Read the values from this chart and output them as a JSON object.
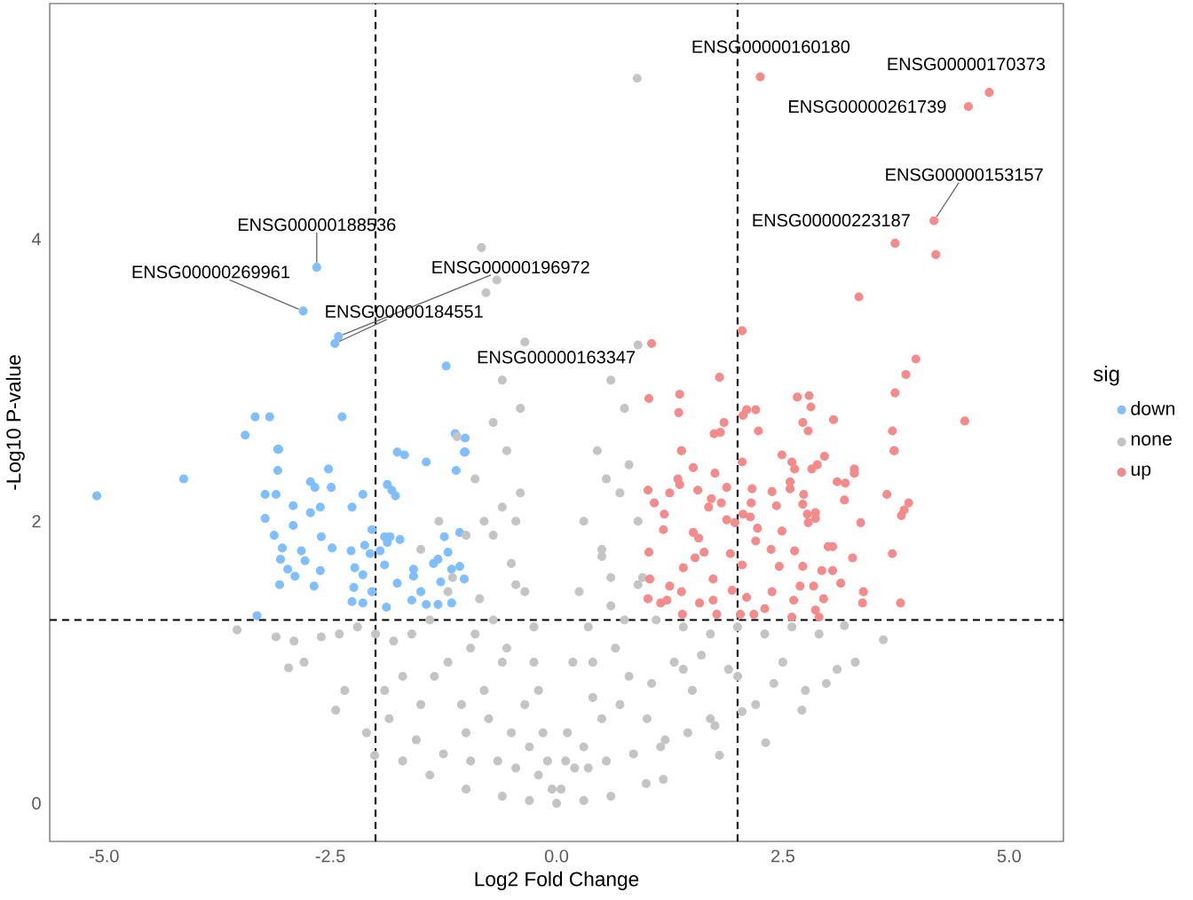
{
  "chart_data": {
    "type": "scatter",
    "xlabel": "Log2 Fold Change",
    "ylabel": "-Log10 P-value",
    "legend_title": "sig",
    "legend": "right",
    "marker": "circle",
    "xlim": [
      -5.6,
      5.6
    ],
    "ylim": [
      -0.27,
      5.67
    ],
    "xticks": [
      {
        "value": -5,
        "label": "-5.0"
      },
      {
        "value": -2.5,
        "label": "-2.5"
      },
      {
        "value": 0,
        "label": "0.0"
      },
      {
        "value": 2.5,
        "label": "2.5"
      },
      {
        "value": 5,
        "label": "5.0"
      }
    ],
    "yticks": [
      0,
      2,
      4
    ],
    "ref_lines": [
      {
        "axis": "x",
        "value": -2,
        "color": "#000000",
        "line_style": "dashed"
      },
      {
        "axis": "x",
        "value": 2,
        "color": "#000000",
        "line_style": "dashed"
      },
      {
        "axis": "y",
        "value": 1.3,
        "color": "#000000",
        "line_style": "dashed"
      }
    ],
    "series": [
      {
        "name": "down",
        "color": "#80bfff",
        "x": [
          -5.08,
          -4.12,
          -3.31,
          -3.22,
          -3.1,
          -3.08,
          -3.08,
          -3.22,
          -3.12,
          -3.03,
          -3.05,
          -2.97,
          -3.06,
          -2.89,
          -2.91,
          -2.91,
          -2.82,
          -2.78,
          -2.72,
          -2.67,
          -2.72,
          -2.61,
          -2.6,
          -2.61,
          -2.68,
          -2.52,
          -2.49,
          -2.48,
          -2.26,
          -2.27,
          -2.23,
          -2.24,
          -2.26,
          -2.14,
          -2.12,
          -2.14,
          -2.14,
          -2.04,
          -2.04,
          -2.06,
          -1.95,
          -1.9,
          -1.87,
          -1.84,
          -1.87,
          -1.82,
          -1.78,
          -1.76,
          -1.44,
          -1.73,
          -1.9,
          -1.88,
          -1.76,
          -1.58,
          -1.58,
          -1.5,
          -1.6,
          -1.44,
          -1.36,
          -1.31,
          -1.28,
          -1.24,
          -1.2,
          -1.16,
          -1.07,
          -1.07,
          -1.02,
          -1.11,
          -1.02,
          -1.16,
          -1.31,
          -3.33,
          -3.17,
          -3.44,
          -3.07,
          -2.37,
          -1.68,
          -1.12,
          -1.01,
          -1.01,
          -2.65,
          -2.8,
          -2.41,
          -2.45,
          -1.22
        ],
        "values": [
          2.18,
          2.3,
          1.33,
          2.19,
          2.19,
          2.51,
          2.36,
          2.02,
          1.9,
          1.81,
          1.73,
          1.66,
          1.55,
          1.61,
          2.11,
          1.97,
          1.79,
          1.72,
          2.28,
          2.24,
          2.06,
          2.1,
          1.89,
          1.65,
          1.54,
          2.37,
          2.24,
          1.81,
          2.1,
          1.79,
          1.67,
          1.53,
          1.43,
          2.19,
          1.83,
          1.62,
          1.42,
          1.94,
          1.5,
          1.77,
          1.79,
          1.89,
          1.85,
          1.89,
          2.26,
          2.22,
          2.18,
          2.49,
          2.42,
          1.87,
          1.69,
          1.39,
          1.56,
          1.66,
          1.61,
          1.5,
          1.44,
          1.41,
          1.7,
          1.73,
          1.57,
          1.89,
          1.78,
          1.66,
          1.92,
          1.68,
          1.59,
          2.36,
          2.49,
          1.42,
          1.41,
          2.74,
          2.74,
          2.61,
          2.51,
          2.74,
          2.47,
          2.62,
          2.59,
          2.49,
          3.8,
          3.49,
          3.31,
          3.26,
          3.1
        ]
      },
      {
        "name": "none",
        "color": "#c4c4c4",
        "x": [
          -0.05,
          -0.15,
          -0.25,
          -0.35,
          -0.45,
          -0.55,
          -0.6,
          -0.66,
          -0.78,
          -0.83,
          -0.35,
          -0.4,
          -0.7,
          -0.9,
          -1.0,
          -1.2,
          -1.4,
          -1.6,
          -1.8,
          -2.0,
          -2.2,
          -2.4,
          -2.6,
          -2.9,
          -3.1,
          -3.53,
          -2.96,
          -2.79,
          -2.44,
          -2.34,
          -2.1,
          -2.01,
          -1.7,
          -1.4,
          -1.0,
          -0.6,
          -0.3,
          -0.5,
          -0.8,
          -1.0,
          -1.5,
          -1.2,
          -0.7,
          -0.5,
          -0.8,
          -1.7,
          -1.9,
          -0.3,
          -0.6,
          -0.9,
          -0.4,
          -0.6,
          -1.1,
          -1.3,
          -1.5,
          -0.2,
          0.05,
          0.12,
          0.18,
          0.25,
          0.3,
          0.45,
          0.6,
          0.9,
          0.89,
          0.75,
          0.8,
          0.9,
          0.95,
          1.1,
          1.4,
          1.7,
          2.0,
          2.3,
          2.6,
          2.9,
          3.18,
          3.61,
          2.98,
          2.71,
          2.31,
          1.8,
          1.18,
          0.99,
          0.6,
          0.3,
          0.0,
          0.5,
          0.8,
          1.0,
          1.5,
          2.0,
          2.5,
          1.3,
          0.6,
          0.5,
          0.7,
          0.4,
          1.7,
          2.2,
          0.3,
          0.65,
          1.2,
          0.55,
          3.3,
          3.1,
          -0.1,
          -0.2,
          -0.45,
          -0.65,
          -0.95,
          -1.25,
          -1.55,
          -1.85,
          -0.35,
          -0.75,
          -1.05,
          -1.35,
          -0.25,
          -0.55,
          -0.85,
          -1.15,
          -0.45,
          -0.7,
          -0.95,
          0.1,
          0.2,
          0.35,
          0.55,
          0.85,
          1.15,
          1.45,
          1.75,
          2.05,
          0.4,
          0.7,
          1.05,
          1.4,
          1.9,
          2.4,
          2.75,
          0.35,
          0.6,
          0.9,
          1.6,
          0.5,
          0.75
        ],
        "values": [
          0.1,
          0.5,
          1.0,
          1.5,
          2.0,
          2.5,
          3.0,
          3.71,
          3.62,
          3.94,
          3.27,
          2.8,
          2.7,
          2.3,
          1.9,
          1.5,
          1.3,
          1.2,
          1.15,
          1.2,
          1.25,
          1.2,
          1.18,
          1.15,
          1.18,
          1.23,
          0.96,
          1.0,
          0.66,
          0.8,
          0.5,
          0.34,
          0.3,
          0.2,
          0.1,
          0.05,
          0.02,
          0.5,
          0.8,
          0.5,
          0.7,
          1.0,
          1.3,
          1.7,
          2.0,
          0.9,
          0.8,
          0.4,
          1.0,
          1.2,
          2.2,
          2.1,
          2.6,
          2.0,
          1.8,
          0.8,
          0.1,
          0.5,
          1.0,
          1.5,
          2.0,
          2.5,
          3.0,
          3.25,
          5.14,
          2.8,
          2.4,
          2.0,
          1.6,
          1.3,
          1.25,
          1.2,
          1.25,
          1.2,
          1.25,
          1.2,
          1.26,
          1.16,
          0.85,
          0.66,
          0.43,
          0.34,
          0.17,
          0.14,
          0.05,
          0.02,
          0.0,
          0.6,
          0.9,
          0.6,
          0.8,
          0.9,
          1.0,
          1.0,
          1.4,
          1.8,
          2.2,
          1.0,
          0.6,
          0.7,
          0.4,
          1.1,
          0.45,
          2.3,
          1.0,
          0.95,
          0.3,
          0.2,
          0.25,
          0.3,
          0.3,
          0.35,
          0.45,
          0.6,
          0.7,
          0.6,
          0.7,
          0.9,
          1.25,
          1.1,
          1.45,
          1.6,
          1.55,
          1.9,
          1.1,
          0.3,
          0.25,
          0.25,
          0.3,
          0.35,
          0.4,
          0.5,
          0.55,
          0.65,
          0.75,
          0.7,
          0.85,
          0.95,
          0.95,
          0.85,
          0.8,
          1.25,
          1.6,
          1.55,
          1.05,
          1.75,
          1.3
        ]
      },
      {
        "name": "up",
        "color": "#f48a8a",
        "x": [
          2.05,
          2.49,
          2.6,
          2.63,
          2.82,
          2.88,
          2.96,
          3.1,
          3.19,
          3.29,
          3.29,
          3.18,
          3.36,
          3.65,
          3.73,
          3.89,
          3.84,
          3.81,
          3.71,
          3.8,
          3.39,
          3.38,
          3.27,
          3.14,
          3.05,
          3.0,
          3.05,
          2.93,
          2.95,
          2.84,
          2.9,
          2.86,
          2.72,
          2.63,
          2.69,
          2.62,
          2.6,
          2.77,
          2.78,
          2.73,
          2.72,
          2.86,
          2.86,
          2.58,
          2.58,
          2.38,
          2.43,
          2.49,
          2.37,
          2.46,
          2.38,
          2.3,
          2.2,
          2.22,
          2.16,
          2.15,
          2.14,
          2.06,
          2.05,
          2.1,
          2.03,
          1.97,
          1.92,
          1.94,
          1.88,
          1.88,
          1.75,
          1.82,
          1.73,
          1.73,
          1.71,
          1.68,
          1.63,
          1.57,
          1.53,
          1.51,
          1.56,
          1.51,
          1.38,
          1.34,
          1.36,
          1.4,
          1.38,
          1.39,
          1.25,
          1.19,
          1.18,
          1.08,
          1.01,
          1.02,
          1.03,
          1.01,
          1.15,
          1.25,
          1.22,
          1.58,
          1.77,
          2.18,
          1.05,
          1.8,
          2.05,
          1.36,
          1.35,
          1.02,
          1.85,
          1.74,
          1.81,
          2.1,
          2.06,
          2.2,
          2.23,
          2.66,
          2.79,
          2.81,
          2.72,
          2.78,
          3.06,
          3.71,
          3.73,
          3.74,
          3.86,
          3.97,
          4.51,
          1.38,
          3.34,
          4.19,
          2.25,
          4.78,
          4.55,
          4.17,
          3.74
        ],
        "values": [
          2.42,
          2.47,
          2.42,
          2.37,
          2.37,
          2.4,
          2.46,
          2.28,
          2.27,
          2.37,
          2.34,
          2.15,
          1.99,
          2.19,
          2.5,
          2.13,
          2.08,
          2.04,
          1.77,
          1.42,
          1.5,
          1.42,
          1.74,
          1.56,
          1.82,
          1.82,
          1.65,
          1.65,
          1.45,
          1.54,
          1.32,
          1.37,
          1.68,
          1.79,
          1.54,
          1.44,
          1.32,
          2.05,
          1.99,
          2.19,
          2.12,
          2.06,
          2.02,
          2.23,
          2.28,
          2.21,
          2.11,
          1.93,
          1.8,
          1.68,
          1.5,
          1.38,
          1.86,
          1.95,
          2.23,
          2.13,
          2.03,
          2.05,
          1.69,
          1.46,
          1.34,
          1.99,
          1.77,
          1.51,
          2.24,
          2.01,
          2.34,
          2.13,
          1.59,
          1.44,
          2.16,
          2.1,
          1.78,
          1.88,
          1.74,
          1.92,
          2.22,
          2.38,
          2.5,
          2.3,
          2.26,
          1.67,
          1.5,
          1.34,
          2.2,
          2.05,
          1.94,
          2.13,
          2.22,
          1.78,
          1.59,
          1.45,
          1.42,
          1.54,
          1.44,
          1.42,
          1.34,
          1.34,
          3.26,
          3.02,
          3.35,
          2.9,
          2.77,
          2.87,
          2.7,
          2.62,
          2.63,
          2.79,
          2.75,
          2.79,
          2.64,
          2.88,
          2.89,
          2.81,
          2.7,
          2.64,
          2.72,
          2.64,
          2.5,
          2.91,
          3.04,
          3.15,
          2.71,
          2.5,
          3.59,
          3.89,
          5.15,
          5.04,
          4.94,
          4.13,
          3.97
        ]
      }
    ],
    "annotations": [
      {
        "text": "ENSG00000160180",
        "x": 2.25,
        "y": 5.15
      },
      {
        "text": "ENSG00000170373",
        "x": 4.78,
        "y": 5.04
      },
      {
        "text": "ENSG00000261739",
        "x": 4.55,
        "y": 4.94
      },
      {
        "text": "ENSG00000153157",
        "x": 4.17,
        "y": 4.13
      },
      {
        "text": "ENSG00000223187",
        "x": 3.74,
        "y": 3.97
      },
      {
        "text": "ENSG00000188536",
        "x": -2.65,
        "y": 3.8
      },
      {
        "text": "ENSG00000269961",
        "x": -2.8,
        "y": 3.49
      },
      {
        "text": "ENSG00000196972",
        "x": -2.41,
        "y": 3.31
      },
      {
        "text": "ENSG00000184551",
        "x": -2.45,
        "y": 3.26
      },
      {
        "text": "ENSG00000163347",
        "x": -1.22,
        "y": 3.1
      }
    ]
  }
}
